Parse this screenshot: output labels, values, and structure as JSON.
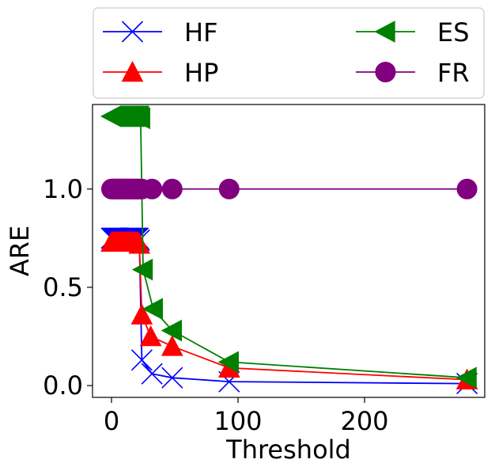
{
  "chart_data": {
    "type": "line",
    "xlabel": "Threshold",
    "ylabel": "ARE",
    "xlim": [
      -15,
      295
    ],
    "ylim": [
      -0.06,
      1.43
    ],
    "xticks": [
      0,
      100,
      200
    ],
    "yticks": [
      0.0,
      0.5,
      1.0
    ],
    "xtick_labels": [
      "0",
      "100",
      "200"
    ],
    "ytick_labels": [
      "0.0",
      "0.5",
      "1.0"
    ],
    "grid": false,
    "legend_position": "top, above plot, two columns",
    "series": [
      {
        "name": "HF",
        "color": "#0000ff",
        "marker": "x",
        "x": [
          0,
          1,
          2,
          3,
          4,
          5,
          6,
          7,
          8,
          9,
          10,
          11,
          12,
          13,
          14,
          15,
          16,
          17,
          18,
          19,
          20,
          21,
          22,
          24,
          32,
          48,
          93,
          281
        ],
        "y": [
          0.75,
          0.75,
          0.75,
          0.75,
          0.75,
          0.75,
          0.75,
          0.75,
          0.75,
          0.75,
          0.75,
          0.75,
          0.75,
          0.75,
          0.75,
          0.75,
          0.75,
          0.75,
          0.75,
          0.75,
          0.75,
          0.75,
          0.74,
          0.13,
          0.06,
          0.04,
          0.02,
          0.01
        ]
      },
      {
        "name": "HP",
        "color": "#ff0000",
        "marker": "^",
        "x": [
          0,
          1,
          2,
          3,
          4,
          5,
          6,
          7,
          8,
          9,
          10,
          11,
          12,
          13,
          14,
          15,
          16,
          17,
          18,
          19,
          20,
          21,
          22,
          24,
          31,
          48,
          93,
          281
        ],
        "y": [
          0.73,
          0.73,
          0.73,
          0.73,
          0.73,
          0.73,
          0.73,
          0.73,
          0.73,
          0.73,
          0.73,
          0.73,
          0.73,
          0.73,
          0.73,
          0.73,
          0.73,
          0.73,
          0.73,
          0.73,
          0.73,
          0.73,
          0.72,
          0.36,
          0.25,
          0.2,
          0.09,
          0.03
        ]
      },
      {
        "name": "ES",
        "color": "#008000",
        "marker": "<",
        "x": [
          0,
          1,
          2,
          3,
          4,
          5,
          6,
          7,
          8,
          9,
          10,
          11,
          12,
          13,
          14,
          15,
          16,
          17,
          18,
          19,
          20,
          21,
          22,
          23,
          25,
          33,
          48,
          93,
          281
        ],
        "y": [
          1.37,
          1.37,
          1.37,
          1.37,
          1.37,
          1.37,
          1.37,
          1.37,
          1.37,
          1.37,
          1.37,
          1.37,
          1.37,
          1.37,
          1.37,
          1.37,
          1.37,
          1.37,
          1.37,
          1.37,
          1.37,
          1.37,
          1.37,
          1.36,
          0.59,
          0.39,
          0.28,
          0.12,
          0.04
        ]
      },
      {
        "name": "FR",
        "color": "#800080",
        "marker": "o",
        "x": [
          0,
          1,
          2,
          3,
          4,
          5,
          6,
          7,
          8,
          9,
          10,
          11,
          12,
          13,
          14,
          15,
          16,
          17,
          18,
          19,
          20,
          21,
          22,
          24,
          32,
          48,
          93,
          281
        ],
        "y": [
          1.0,
          1.0,
          1.0,
          1.0,
          1.0,
          1.0,
          1.0,
          1.0,
          1.0,
          1.0,
          1.0,
          1.0,
          1.0,
          1.0,
          1.0,
          1.0,
          1.0,
          1.0,
          1.0,
          1.0,
          1.0,
          1.0,
          1.0,
          1.0,
          1.0,
          1.0,
          1.0,
          1.0
        ]
      }
    ]
  }
}
